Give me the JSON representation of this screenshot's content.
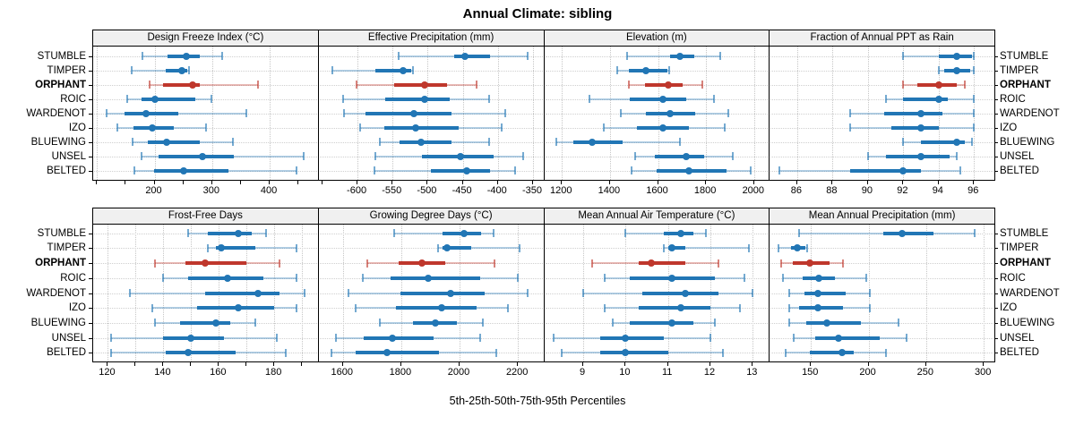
{
  "title": "Annual Climate: sibling",
  "xlabel": "5th-25th-50th-75th-95th Percentiles",
  "sites": [
    "STUMBLE",
    "TIMPER",
    "ORPHANT",
    "ROIC",
    "WARDENOT",
    "IZO",
    "BLUEWING",
    "UNSEL",
    "BELTED"
  ],
  "highlight_site": "ORPHANT",
  "colors": {
    "blue": "#2176b5",
    "red": "#bf372c",
    "strip_bg": "#f0f0f0",
    "grid_dotted": "#c6c6c6",
    "text": "#000000"
  },
  "chart_data": {
    "type": "scatter",
    "subtype": "multi-panel percentile interval dot plot",
    "title": "Annual Climate: sibling",
    "xlabel": "5th-25th-50th-75th-95th Percentiles",
    "percentiles": [
      5,
      25,
      50,
      75,
      95
    ],
    "legend": "none",
    "grid": "dotted",
    "highlight_site": "ORPHANT",
    "sites": [
      "STUMBLE",
      "TIMPER",
      "ORPHANT",
      "ROIC",
      "WARDENOT",
      "IZO",
      "BLUEWING",
      "UNSEL",
      "BELTED"
    ],
    "panels": [
      {
        "title": "Design Freeze Index (°C)",
        "xlim": [
          95,
          485
        ],
        "ticks": [
          100,
          150,
          200,
          250,
          300,
          350,
          400,
          450
        ],
        "grid": [
          100,
          200,
          300,
          400
        ],
        "labeled": [
          200,
          300,
          400
        ],
        "values": [
          [
            179,
            222,
            255,
            279,
            318
          ],
          [
            160,
            220,
            248,
            257,
            260
          ],
          [
            191,
            215,
            266,
            278,
            380
          ],
          [
            153,
            177,
            201,
            270,
            299
          ],
          [
            116,
            148,
            185,
            241,
            360
          ],
          [
            136,
            163,
            196,
            233,
            290
          ],
          [
            162,
            189,
            221,
            279,
            336
          ],
          [
            178,
            207,
            283,
            338,
            459
          ],
          [
            165,
            199,
            251,
            329,
            447
          ]
        ]
      },
      {
        "title": "Effective Precipitation (mm)",
        "xlim": [
          -654,
          -334
        ],
        "ticks": [
          -650,
          -600,
          -550,
          -500,
          -450,
          -400,
          -350
        ],
        "grid": [
          -600,
          -550,
          -500,
          -450,
          -400,
          -350
        ],
        "labeled": [
          -600,
          -550,
          -500,
          -450,
          -400,
          -350
        ],
        "values": [
          [
            -541,
            -462,
            -447,
            -411,
            -358
          ],
          [
            -636,
            -574,
            -535,
            -524,
            -521
          ],
          [
            -601,
            -548,
            -505,
            -472,
            -430
          ],
          [
            -621,
            -561,
            -505,
            -468,
            -413
          ],
          [
            -619,
            -589,
            -520,
            -466,
            -389
          ],
          [
            -596,
            -562,
            -517,
            -456,
            -394
          ],
          [
            -568,
            -540,
            -510,
            -466,
            -413
          ],
          [
            -574,
            -508,
            -453,
            -406,
            -364
          ],
          [
            -576,
            -495,
            -445,
            -411,
            -375
          ]
        ]
      },
      {
        "title": "Elevation (m)",
        "xlim": [
          1130,
          2065
        ],
        "ticks": [
          1200,
          1400,
          1600,
          1800,
          2000
        ],
        "grid": [
          1200,
          1400,
          1600,
          1800,
          2000
        ],
        "labeled": [
          1200,
          1400,
          1600,
          1800,
          2000
        ],
        "values": [
          [
            1470,
            1650,
            1693,
            1749,
            1860
          ],
          [
            1430,
            1478,
            1548,
            1640,
            1648
          ],
          [
            1480,
            1544,
            1643,
            1703,
            1786
          ],
          [
            1315,
            1482,
            1619,
            1718,
            1833
          ],
          [
            1445,
            1550,
            1650,
            1755,
            1894
          ],
          [
            1375,
            1511,
            1622,
            1730,
            1879
          ],
          [
            1175,
            1247,
            1325,
            1451,
            1693
          ],
          [
            1505,
            1588,
            1718,
            1792,
            1913
          ],
          [
            1489,
            1594,
            1728,
            1885,
            1986
          ]
        ]
      },
      {
        "title": "Fraction of Annual PPT as Rain",
        "xlim": [
          84.5,
          97.2
        ],
        "ticks": [
          86,
          88,
          90,
          92,
          94,
          96
        ],
        "grid": [
          86,
          88,
          90,
          92,
          94,
          96
        ],
        "labeled": [
          86,
          88,
          90,
          92,
          94,
          96
        ],
        "values": [
          [
            92,
            94,
            95,
            95.9,
            96
          ],
          [
            94,
            94.3,
            95,
            95.8,
            96
          ],
          [
            92,
            92.8,
            94,
            95,
            95.5
          ],
          [
            91,
            92,
            94,
            94.5,
            96
          ],
          [
            89,
            90.9,
            93,
            94.2,
            96
          ],
          [
            89,
            91.3,
            93,
            94,
            96
          ],
          [
            92,
            93,
            95,
            95.5,
            95.9
          ],
          [
            90,
            91,
            93,
            94.6,
            95
          ],
          [
            85,
            89,
            92,
            93,
            95.2
          ]
        ]
      },
      {
        "title": "Frost-Free Days",
        "xlim": [
          115,
          196
        ],
        "ticks": [
          120,
          130,
          140,
          150,
          160,
          170,
          180,
          190
        ],
        "grid": [
          120,
          130,
          140,
          150,
          160,
          170,
          180,
          190
        ],
        "labeled": [
          120,
          140,
          160,
          180
        ],
        "values": [
          [
            149,
            156,
            167,
            172,
            177
          ],
          [
            156,
            159,
            161,
            173,
            188
          ],
          [
            137,
            148,
            155,
            170,
            182
          ],
          [
            140,
            149,
            163,
            176,
            188
          ],
          [
            128,
            155,
            174,
            182,
            191
          ],
          [
            136,
            152,
            167,
            180,
            188
          ],
          [
            137,
            146,
            159,
            164,
            173
          ],
          [
            121,
            140,
            150,
            162,
            181
          ],
          [
            121,
            141,
            149,
            166,
            184
          ]
        ]
      },
      {
        "title": "Growing Degree Days (°C)",
        "xlim": [
          1520,
          2290
        ],
        "ticks": [
          1600,
          1800,
          2000,
          2200
        ],
        "grid": [
          1600,
          1800,
          2000,
          2200
        ],
        "labeled": [
          1600,
          1800,
          2000,
          2200
        ],
        "values": [
          [
            1775,
            1940,
            2015,
            2075,
            2115
          ],
          [
            1925,
            1940,
            1957,
            2040,
            2205
          ],
          [
            1685,
            1790,
            1870,
            1950,
            2120
          ],
          [
            1668,
            1762,
            1893,
            2070,
            2198
          ],
          [
            1620,
            1798,
            1968,
            2085,
            2233
          ],
          [
            1645,
            1783,
            1939,
            2059,
            2167
          ],
          [
            1728,
            1839,
            1916,
            1990,
            2080
          ],
          [
            1577,
            1670,
            1770,
            1911,
            2070
          ],
          [
            1560,
            1645,
            1752,
            1930,
            2126
          ]
        ]
      },
      {
        "title": "Mean Annual Air Temperature (°C)",
        "xlim": [
          8.1,
          13.4
        ],
        "ticks": [
          9,
          10,
          11,
          12,
          13
        ],
        "grid": [
          9,
          10,
          11,
          12,
          13
        ],
        "labeled": [
          9,
          10,
          11,
          12,
          13
        ],
        "values": [
          [
            10.0,
            10.9,
            11.3,
            11.6,
            11.9
          ],
          [
            10.9,
            11.0,
            11.1,
            11.4,
            12.9
          ],
          [
            9.2,
            10.3,
            10.6,
            11.4,
            12.2
          ],
          [
            9.5,
            10.1,
            11.1,
            12.1,
            12.8
          ],
          [
            9.0,
            10.4,
            11.4,
            12.2,
            13.0
          ],
          [
            9.5,
            10.3,
            11.3,
            12.0,
            12.7
          ],
          [
            9.7,
            10.1,
            11.1,
            11.6,
            12.1
          ],
          [
            8.3,
            9.4,
            10.0,
            10.9,
            12.0
          ],
          [
            8.5,
            9.4,
            10.0,
            11.0,
            12.3
          ]
        ]
      },
      {
        "title": "Mean Annual Precipitation (mm)",
        "xlim": [
          115,
          310
        ],
        "ticks": [
          150,
          200,
          250,
          300
        ],
        "grid": [
          150,
          200,
          250,
          300
        ],
        "labeled": [
          150,
          200,
          250,
          300
        ],
        "values": [
          [
            140,
            213,
            229,
            256,
            292
          ],
          [
            122,
            133,
            138,
            145,
            147
          ],
          [
            124,
            134,
            149,
            166,
            178
          ],
          [
            126,
            143,
            157,
            171,
            198
          ],
          [
            131,
            144,
            156,
            180,
            201
          ],
          [
            131,
            140,
            156,
            178,
            201
          ],
          [
            131,
            146,
            164,
            193,
            226
          ],
          [
            135,
            154,
            174,
            210,
            233
          ],
          [
            128,
            149,
            177,
            187,
            215
          ]
        ]
      }
    ]
  }
}
